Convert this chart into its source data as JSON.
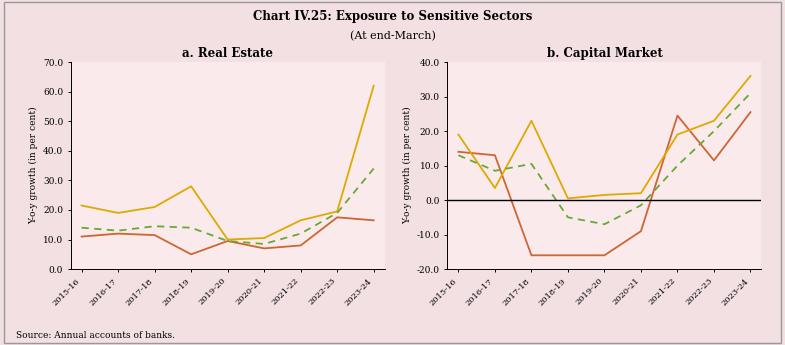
{
  "title": "Chart IV.25: Exposure to Sensitive Sectors",
  "subtitle": "(At end-March)",
  "source": "Source: Annual accounts of banks.",
  "bg_outer": "#f2e0e3",
  "bg_inner": "#faeaec",
  "categories": [
    "2015-16",
    "2016-17",
    "2017-18",
    "2018-19",
    "2019-20",
    "2020-21",
    "2021-22",
    "2022-23",
    "2023-24"
  ],
  "real_estate": {
    "title": "a. Real Estate",
    "ylabel": "Y-o-y growth (in per cent)",
    "ylim": [
      0.0,
      70.0
    ],
    "yticks": [
      0.0,
      10.0,
      20.0,
      30.0,
      40.0,
      50.0,
      60.0,
      70.0
    ],
    "PSBs": [
      11.0,
      12.0,
      11.5,
      5.0,
      9.5,
      7.0,
      8.0,
      17.5,
      16.5
    ],
    "PVBs": [
      21.5,
      19.0,
      21.0,
      28.0,
      10.0,
      10.5,
      16.5,
      19.5,
      62.0
    ],
    "SCBs": [
      14.0,
      13.0,
      14.5,
      14.0,
      9.5,
      8.5,
      12.0,
      19.0,
      34.0
    ]
  },
  "capital_market": {
    "title": "b. Capital Market",
    "ylabel": "Y-o-y growth (in per cent)",
    "ylim": [
      -20.0,
      40.0
    ],
    "yticks": [
      -20.0,
      -10.0,
      0.0,
      10.0,
      20.0,
      30.0,
      40.0
    ],
    "PSBs": [
      14.0,
      13.0,
      -16.0,
      -16.0,
      -16.0,
      -9.0,
      24.5,
      11.5,
      25.5
    ],
    "PVBs": [
      19.0,
      3.5,
      23.0,
      0.5,
      1.5,
      2.0,
      19.0,
      23.0,
      36.0
    ],
    "SCBs": [
      13.0,
      8.5,
      10.5,
      -5.0,
      -7.0,
      -1.5,
      10.0,
      20.0,
      31.0
    ]
  },
  "color_PSBs": "#cc6633",
  "color_PVBs": "#ddaa00",
  "color_SCBs": "#66aa33"
}
